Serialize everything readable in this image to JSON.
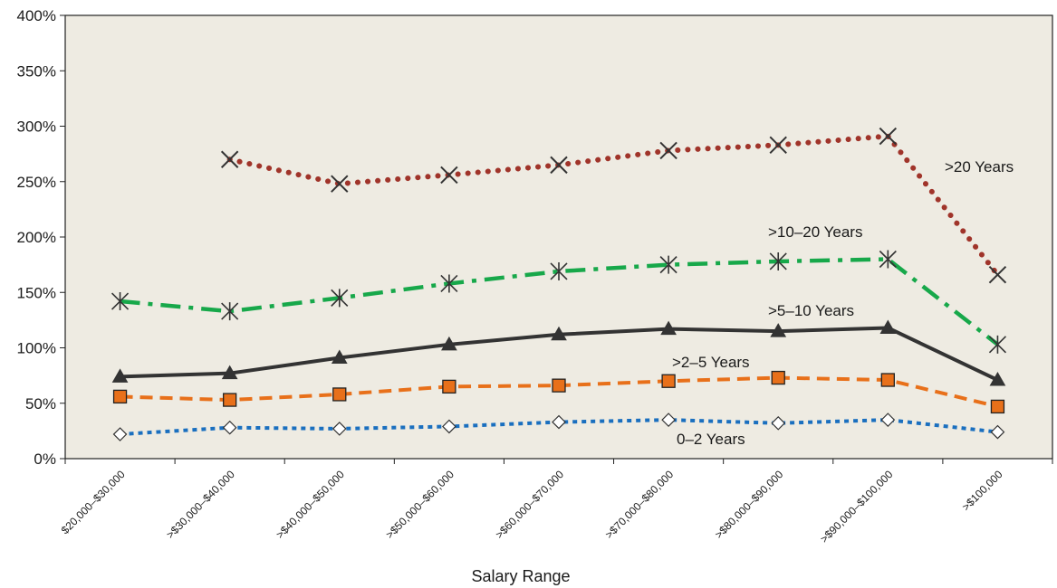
{
  "chart_data": {
    "type": "line",
    "xlabel": "Salary Range",
    "ylabel": "",
    "ylim": [
      0,
      400
    ],
    "y_ticks": [
      "0%",
      "50%",
      "100%",
      "150%",
      "200%",
      "250%",
      "300%",
      "350%",
      "400%"
    ],
    "grid": false,
    "legend": "none",
    "categories": [
      "$20,000–$30,000",
      ">$30,000–$40,000",
      ">$40,000–$50,000",
      ">$50,000–$60,000",
      ">$60,000–$70,000",
      ">$70,000–$80,000",
      ">$80,000–$90,000",
      ">$90,000–$100,000",
      ">$100,000"
    ],
    "series": [
      {
        "name": "0–2 Years",
        "color": "#1a6fbf",
        "marker": "diamond",
        "dash": "dotted",
        "values": [
          22,
          28,
          27,
          29,
          33,
          35,
          32,
          35,
          24
        ]
      },
      {
        "name": ">2–5 Years",
        "color": "#e8701a",
        "marker": "square",
        "dash": "dashed",
        "values": [
          56,
          53,
          58,
          65,
          66,
          70,
          73,
          71,
          47
        ]
      },
      {
        "name": ">5–10 Years",
        "color": "#333333",
        "marker": "triangle",
        "dash": "solid",
        "values": [
          74,
          77,
          91,
          103,
          112,
          117,
          115,
          118,
          71
        ]
      },
      {
        "name": ">10–20 Years",
        "color": "#17a84a",
        "marker": "asterisk",
        "dash": "dashdot",
        "values": [
          142,
          133,
          145,
          158,
          169,
          175,
          178,
          180,
          103
        ]
      },
      {
        "name": ">20 Years",
        "color": "#a0342a",
        "marker": "x",
        "dash": "dotted-round",
        "values": [
          null,
          270,
          248,
          256,
          265,
          278,
          283,
          291,
          166
        ]
      }
    ]
  }
}
